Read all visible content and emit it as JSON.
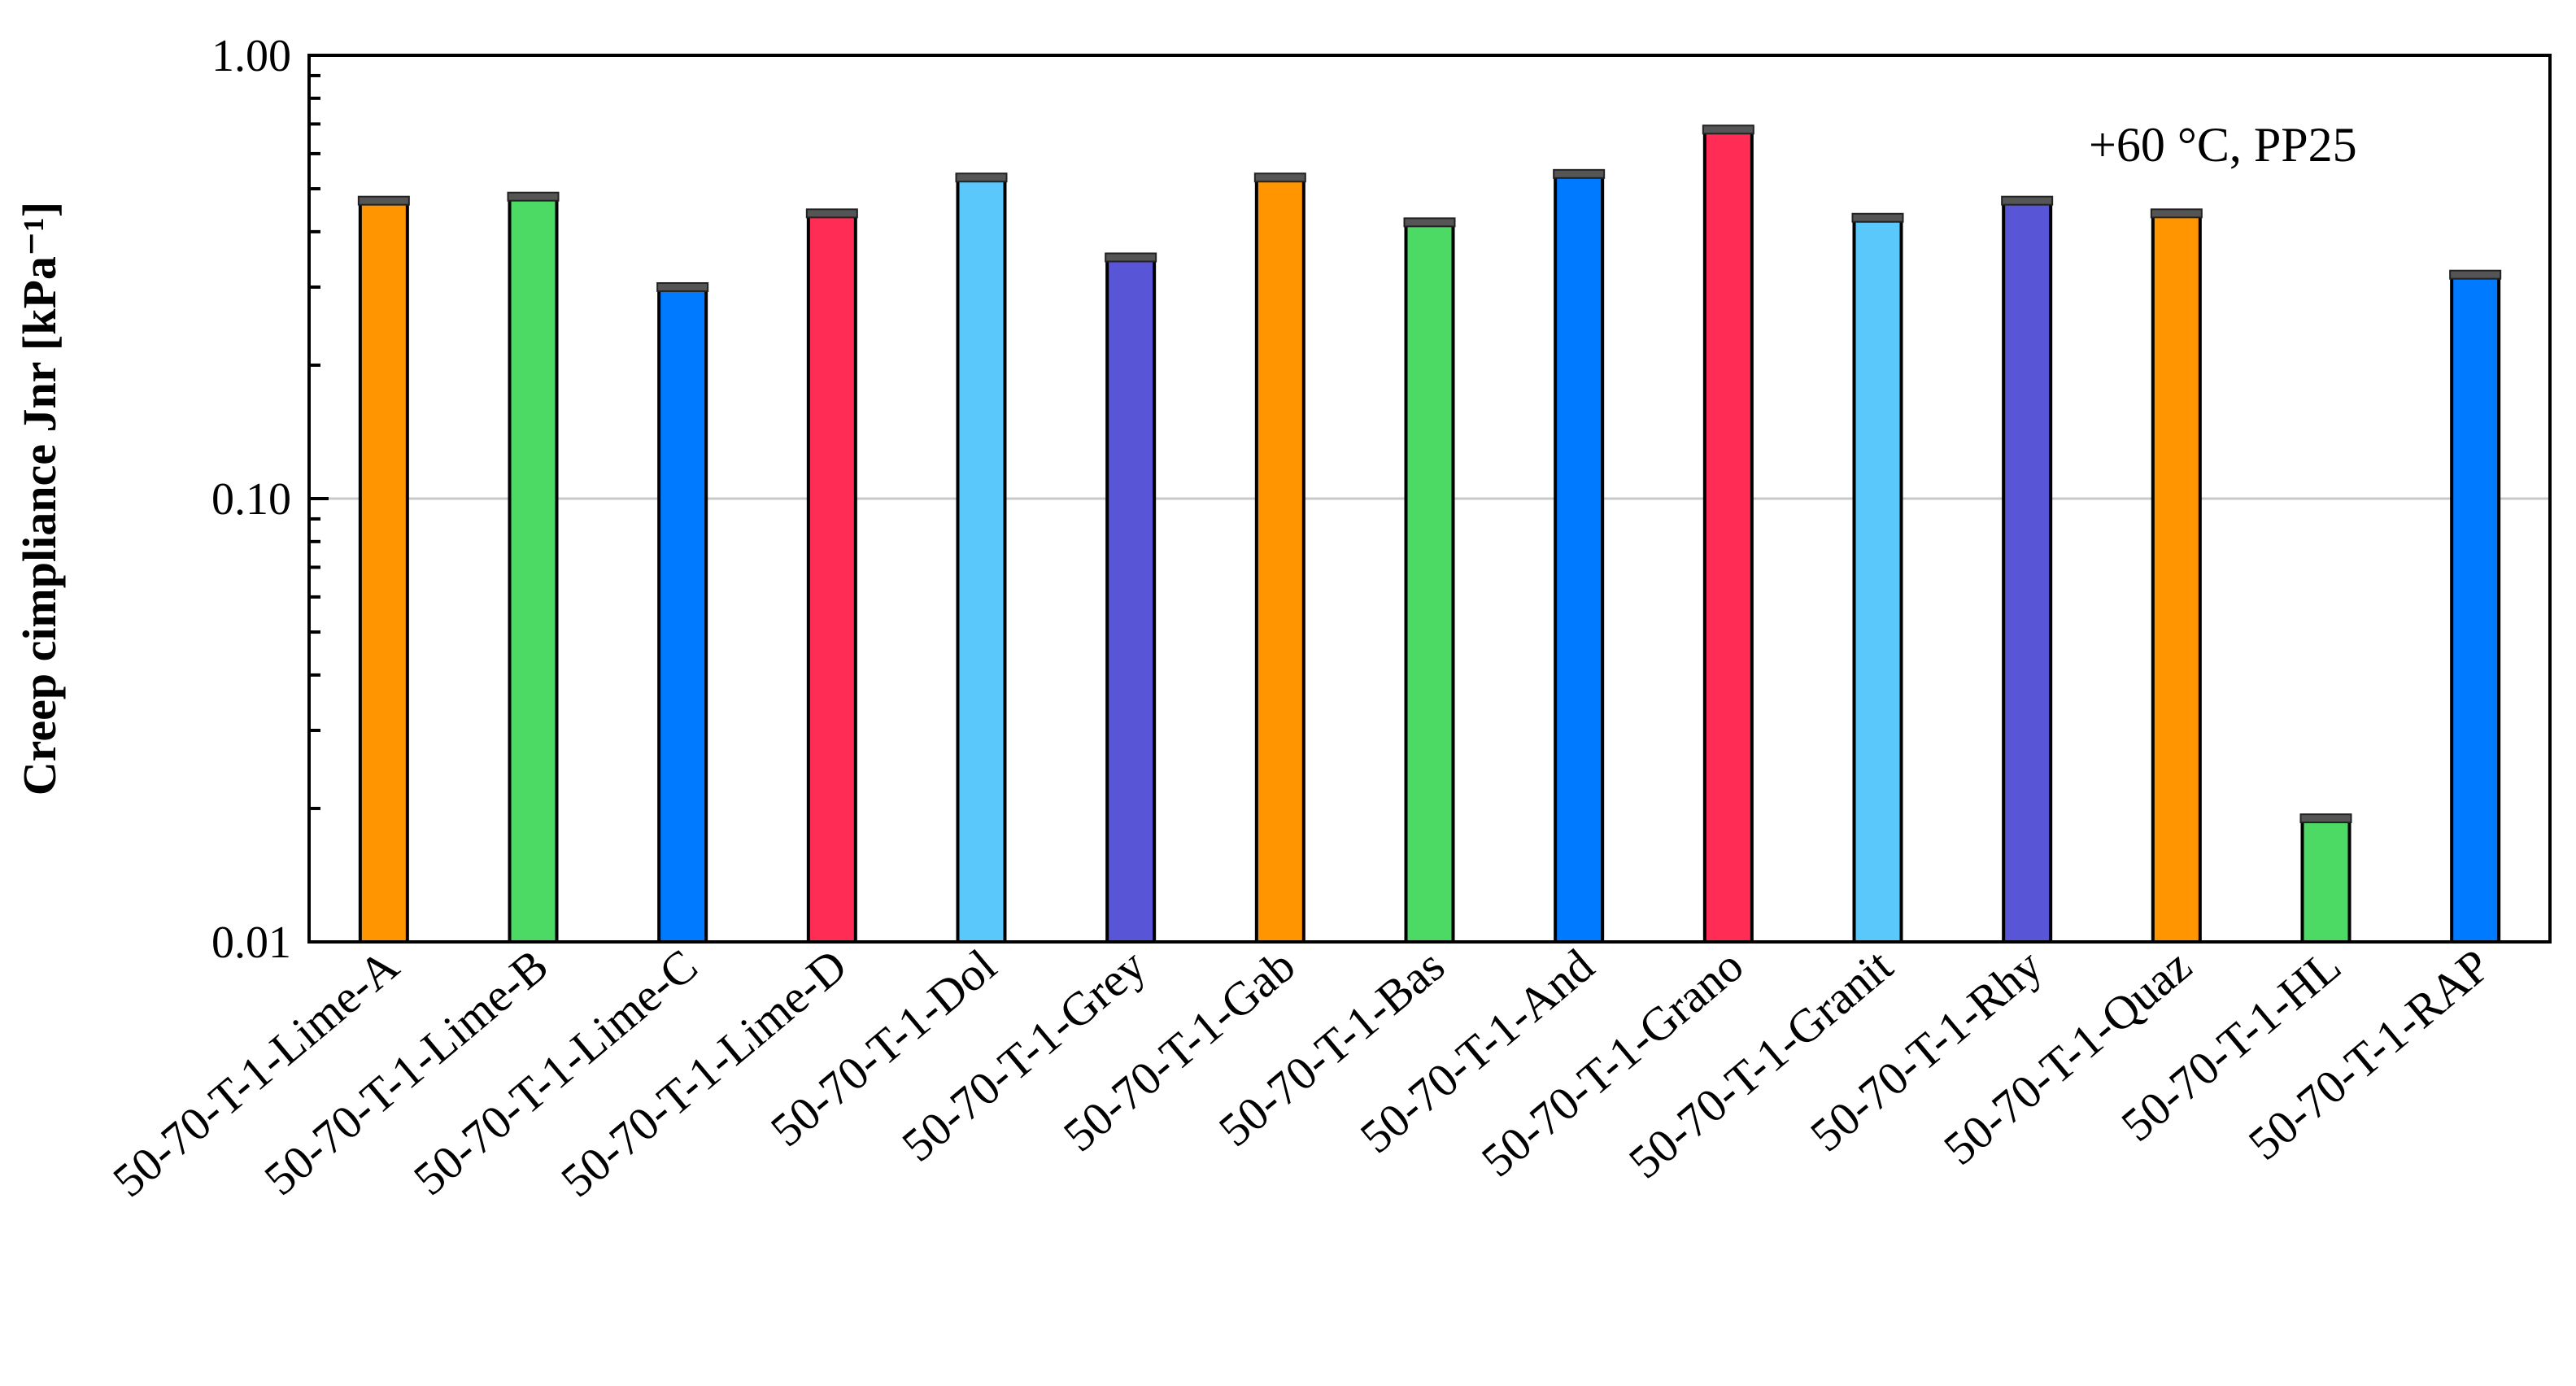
{
  "chart_data": {
    "type": "bar",
    "ylabel": "Creep cimpliance Jnr [kPa⁻¹]",
    "yscale": "log",
    "ylim": [
      0.01,
      1.0
    ],
    "yticks": [
      "0.01",
      "0.10",
      "1.00"
    ],
    "grid": "major-y",
    "legend": "none",
    "annotation": "+60 °C, PP25",
    "categories": [
      "50-70-T-1-Lime-A",
      "50-70-T-1-Lime-B",
      "50-70-T-1-Lime-C",
      "50-70-T-1-Lime-D",
      "50-70-T-1-Dol",
      "50-70-T-1-Grey",
      "50-70-T-1-Gab",
      "50-70-T-1-Bas",
      "50-70-T-1-And",
      "50-70-T-1-Grano",
      "50-70-T-1-Granit",
      "50-70-T-1-Rhy",
      "50-70-T-1-Quaz",
      "50-70-T-1-HL",
      "50-70-T-1-RAP"
    ],
    "values": [
      0.47,
      0.48,
      0.3,
      0.44,
      0.53,
      0.35,
      0.53,
      0.42,
      0.54,
      0.68,
      0.43,
      0.47,
      0.44,
      0.019,
      0.32
    ],
    "colors": [
      "#FF9500",
      "#4CD964",
      "#007AFF",
      "#FF2D55",
      "#5AC8FA",
      "#5856D6",
      "#FF9500",
      "#4CD964",
      "#007AFF",
      "#FF2D55",
      "#5AC8FA",
      "#5856D6",
      "#FF9500",
      "#4CD964",
      "#007AFF"
    ]
  }
}
